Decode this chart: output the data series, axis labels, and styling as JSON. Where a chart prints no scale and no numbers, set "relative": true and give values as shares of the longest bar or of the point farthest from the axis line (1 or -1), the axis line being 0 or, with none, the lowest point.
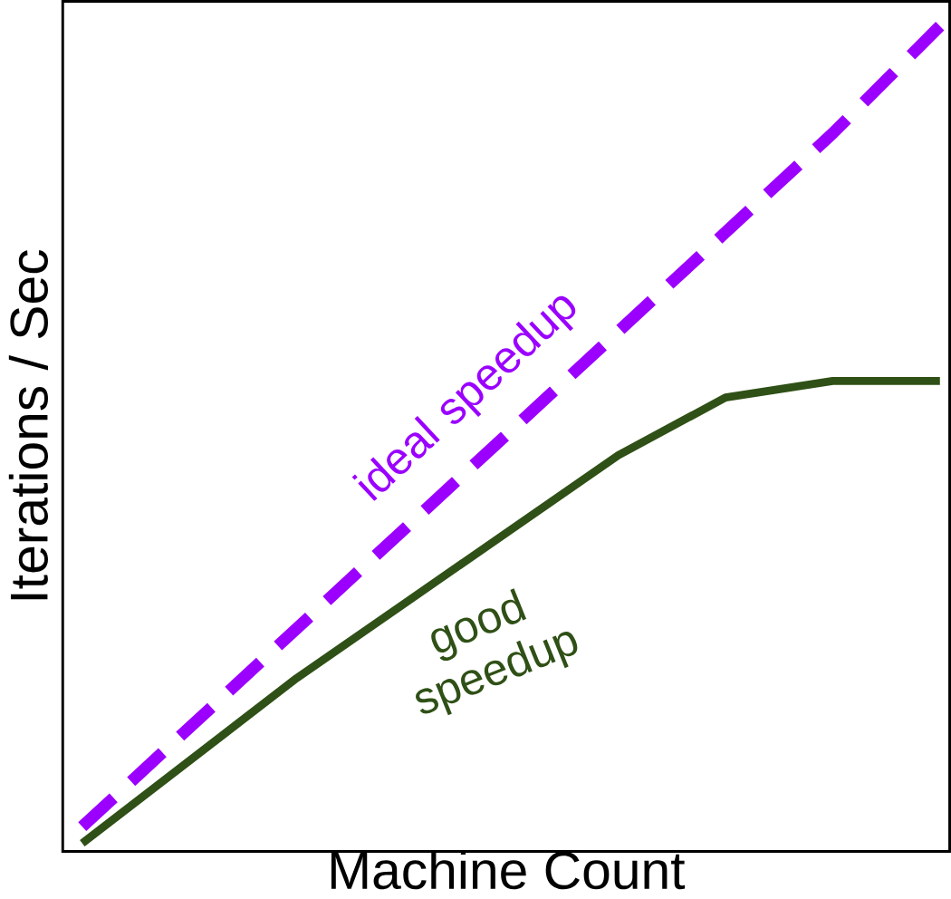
{
  "chart_data": {
    "type": "line",
    "relative": true,
    "xlabel": "Machine Count",
    "ylabel": "Iterations / Sec",
    "legend": false,
    "categories": [
      null,
      null,
      null,
      null,
      null,
      null,
      null,
      null,
      null
    ],
    "series": [
      {
        "name": "ideal speedup",
        "color": "#9b00ff",
        "line_style": "dashed",
        "values": [
          0.03,
          0.15,
          0.27,
          0.39,
          0.51,
          0.63,
          0.75,
          0.87,
          1.0
        ]
      },
      {
        "name": "good speedup",
        "color": "#2f5016",
        "line_style": "solid",
        "values": [
          0.01,
          0.11,
          0.21,
          0.3,
          0.39,
          0.48,
          0.55,
          0.57,
          0.57
        ]
      }
    ]
  }
}
